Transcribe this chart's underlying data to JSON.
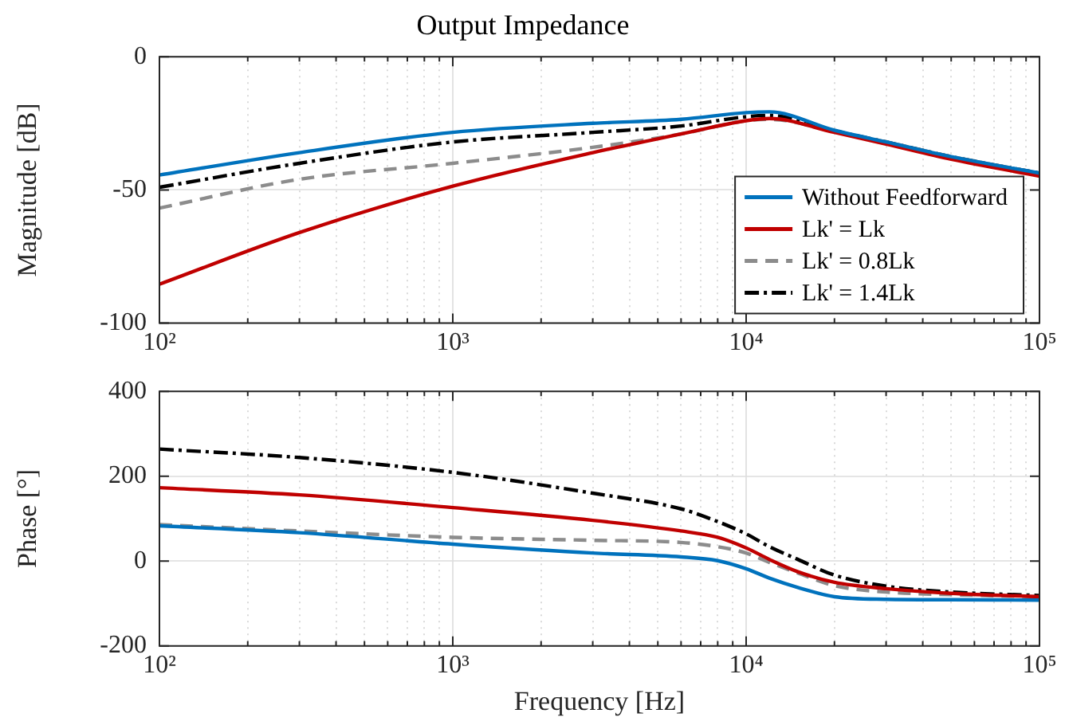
{
  "chart_data": [
    {
      "type": "line",
      "title": "Output Impedance",
      "ylabel": "Magnitude [dB]",
      "log": "x",
      "grid": true,
      "legend": "bottom right",
      "marker": "none",
      "x": [
        100,
        300,
        1000,
        3000,
        6000,
        10000,
        12000,
        20000,
        30000,
        50000,
        100000
      ],
      "xlim": [
        100,
        100000
      ],
      "xticks": [
        {
          "value": 100,
          "label": "10²"
        },
        {
          "value": 200,
          "label": null
        },
        {
          "value": 300,
          "label": null
        },
        {
          "value": 400,
          "label": null
        },
        {
          "value": 500,
          "label": null
        },
        {
          "value": 600,
          "label": null
        },
        {
          "value": 700,
          "label": null
        },
        {
          "value": 800,
          "label": null
        },
        {
          "value": 900,
          "label": null
        },
        {
          "value": 1000,
          "label": "10³"
        },
        {
          "value": 2000,
          "label": null
        },
        {
          "value": 3000,
          "label": null
        },
        {
          "value": 4000,
          "label": null
        },
        {
          "value": 5000,
          "label": null
        },
        {
          "value": 6000,
          "label": null
        },
        {
          "value": 7000,
          "label": null
        },
        {
          "value": 8000,
          "label": null
        },
        {
          "value": 9000,
          "label": null
        },
        {
          "value": 10000,
          "label": "10⁴"
        },
        {
          "value": 20000,
          "label": null
        },
        {
          "value": 30000,
          "label": null
        },
        {
          "value": 40000,
          "label": null
        },
        {
          "value": 50000,
          "label": null
        },
        {
          "value": 60000,
          "label": null
        },
        {
          "value": 70000,
          "label": null
        },
        {
          "value": 80000,
          "label": null
        },
        {
          "value": 90000,
          "label": null
        },
        {
          "value": 100000,
          "label": "10⁵"
        }
      ],
      "ylim": [
        -100,
        0
      ],
      "yticks": [
        -100,
        -50,
        0
      ],
      "series": [
        {
          "name": "Without Feedforward",
          "color": "#0072bd",
          "line_style": "solid",
          "values": [
            -44.4,
            -36,
            -28.4,
            -25,
            -23.5,
            -21,
            -20.7,
            -27.6,
            -32,
            -37.5,
            -43.7
          ]
        },
        {
          "name": "Lk' = Lk",
          "color": "#c00000",
          "line_style": "solid",
          "values": [
            -85.4,
            -66,
            -48.6,
            -36,
            -29,
            -24,
            -23.2,
            -28.4,
            -32.8,
            -38.5,
            -44.8
          ]
        },
        {
          "name": "Lk' = 0.8Lk",
          "color": "#8c8c8c",
          "line_style": "dashed",
          "values": [
            -56.8,
            -46,
            -40,
            -34,
            -29,
            -24,
            -23.5,
            -28,
            -32,
            -37.5,
            -43.7
          ]
        },
        {
          "name": "Lk' = 1.4Lk",
          "color": "#000000",
          "line_style": "dashdot",
          "values": [
            -49,
            -40,
            -32,
            -28.4,
            -26,
            -22.5,
            -22,
            -27.8,
            -32,
            -37.5,
            -43.7
          ]
        }
      ]
    },
    {
      "type": "line",
      "xlabel": "Frequency [Hz]",
      "ylabel": "Phase [°]",
      "log": "x",
      "grid": true,
      "marker": "none",
      "x": [
        100,
        300,
        1000,
        3000,
        6000,
        8000,
        10000,
        12000,
        15000,
        20000,
        30000,
        50000,
        100000
      ],
      "xlim": [
        100,
        100000
      ],
      "xticks": [
        {
          "value": 100,
          "label": "10²"
        },
        {
          "value": 200,
          "label": null
        },
        {
          "value": 300,
          "label": null
        },
        {
          "value": 400,
          "label": null
        },
        {
          "value": 500,
          "label": null
        },
        {
          "value": 600,
          "label": null
        },
        {
          "value": 700,
          "label": null
        },
        {
          "value": 800,
          "label": null
        },
        {
          "value": 900,
          "label": null
        },
        {
          "value": 1000,
          "label": "10³"
        },
        {
          "value": 2000,
          "label": null
        },
        {
          "value": 3000,
          "label": null
        },
        {
          "value": 4000,
          "label": null
        },
        {
          "value": 5000,
          "label": null
        },
        {
          "value": 6000,
          "label": null
        },
        {
          "value": 7000,
          "label": null
        },
        {
          "value": 8000,
          "label": null
        },
        {
          "value": 9000,
          "label": null
        },
        {
          "value": 10000,
          "label": "10⁴"
        },
        {
          "value": 20000,
          "label": null
        },
        {
          "value": 30000,
          "label": null
        },
        {
          "value": 40000,
          "label": null
        },
        {
          "value": 50000,
          "label": null
        },
        {
          "value": 60000,
          "label": null
        },
        {
          "value": 70000,
          "label": null
        },
        {
          "value": 80000,
          "label": null
        },
        {
          "value": 90000,
          "label": null
        },
        {
          "value": 100000,
          "label": "10⁵"
        }
      ],
      "ylim": [
        -200,
        400
      ],
      "yticks": [
        -200,
        0,
        200,
        400
      ],
      "series": [
        {
          "color": "#0072bd",
          "line_style": "solid",
          "values": [
            83,
            67,
            40,
            19,
            10,
            1,
            -18,
            -40,
            -62,
            -84,
            -90,
            -91,
            -92
          ]
        },
        {
          "color": "#c00000",
          "line_style": "solid",
          "values": [
            173,
            156,
            126,
            96,
            71,
            56,
            31,
            4,
            -25,
            -50,
            -65,
            -76,
            -84
          ]
        },
        {
          "color": "#8c8c8c",
          "line_style": "dashed",
          "values": [
            86,
            71,
            56,
            49,
            44,
            34,
            19,
            -3,
            -28,
            -58,
            -73,
            -79,
            -84
          ]
        },
        {
          "color": "#000000",
          "line_style": "dashdot",
          "values": [
            264,
            244,
            209,
            160,
            123,
            93,
            64,
            34,
            4,
            -33,
            -59,
            -73,
            -81
          ]
        }
      ]
    }
  ]
}
